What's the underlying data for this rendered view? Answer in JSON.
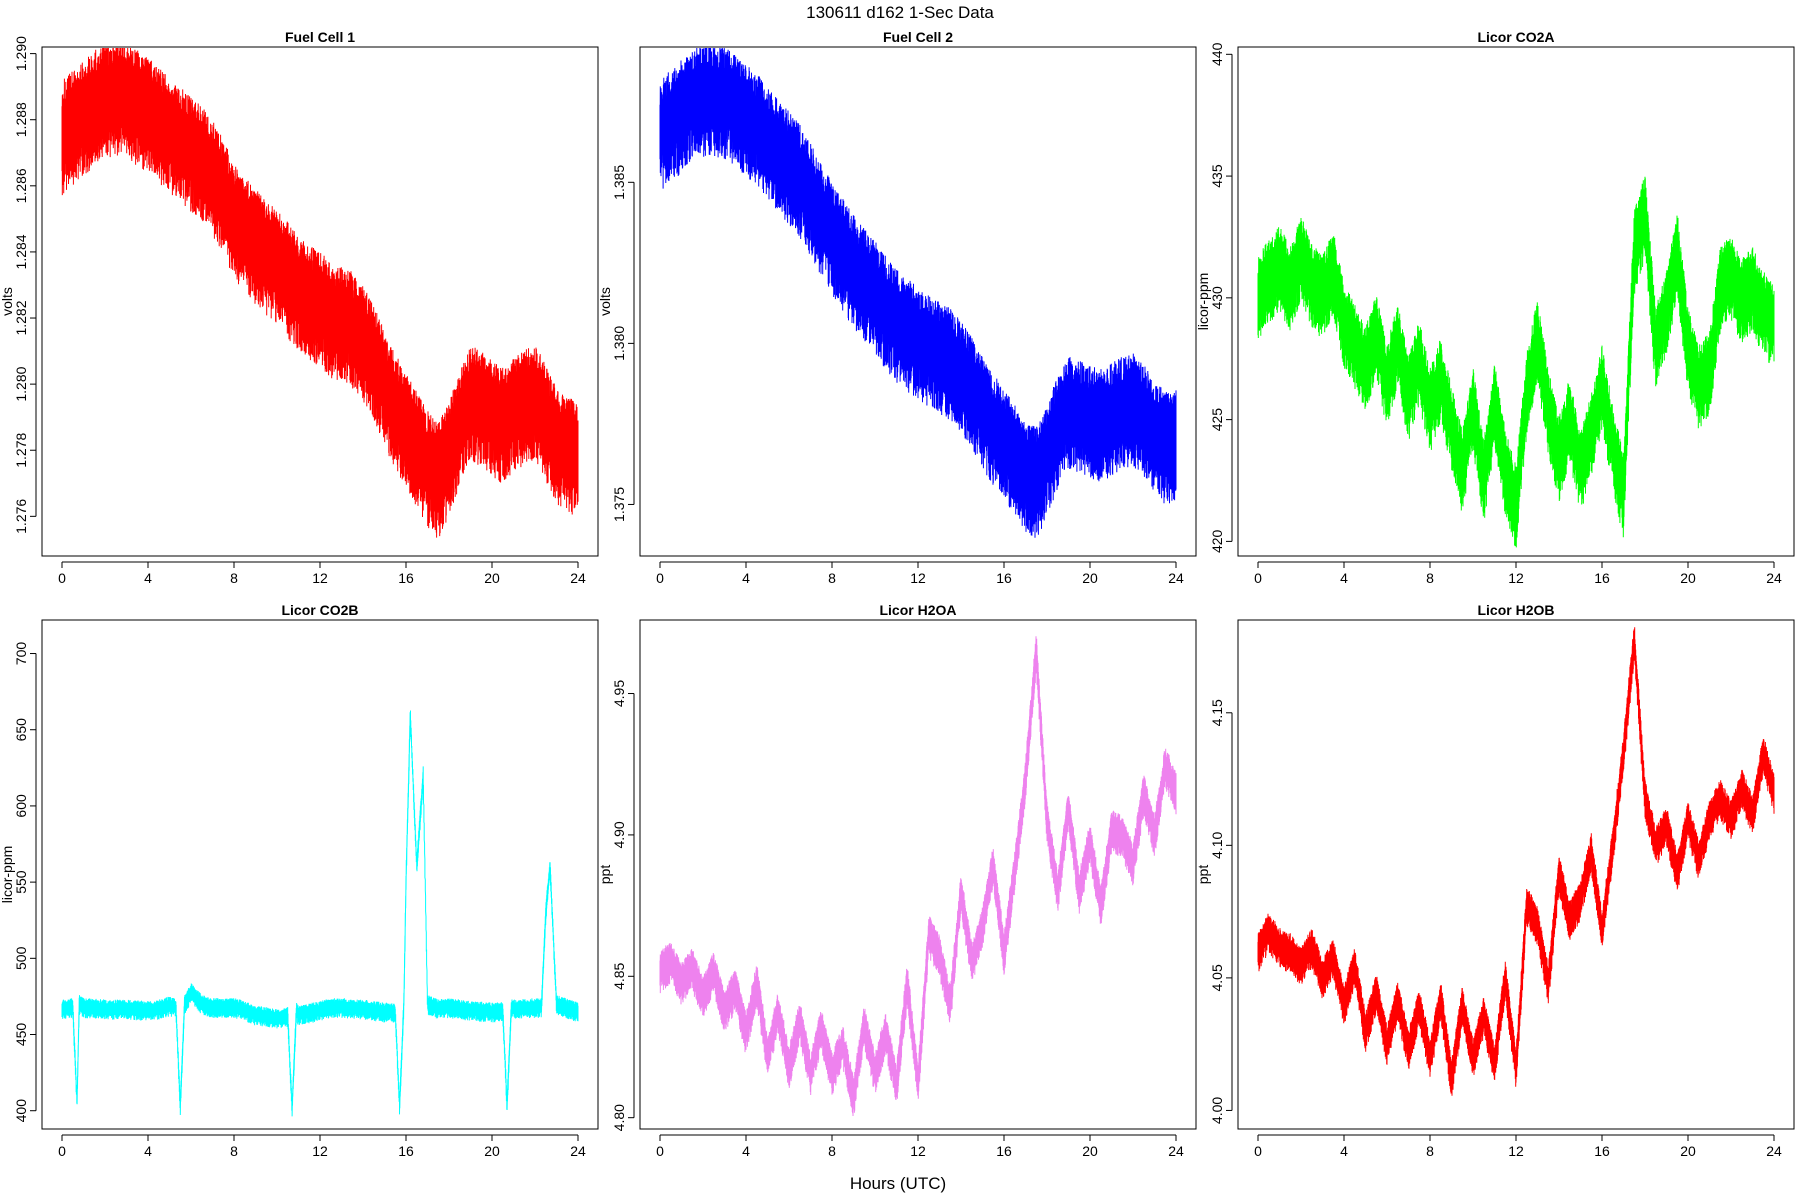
{
  "page": {
    "title": "130611   d162   1-Sec Data",
    "xlabel": "Hours (UTC)"
  },
  "chart_data": [
    {
      "type": "line",
      "title": "Fuel Cell 1",
      "ylabel": "volts",
      "color": "#ff0000",
      "xlim": [
        0,
        24
      ],
      "ylim": [
        1.2748,
        1.2902
      ],
      "xticks": [
        "0",
        "4",
        "8",
        "12",
        "16",
        "20",
        "24"
      ],
      "yticks": [
        "1.276",
        "1.278",
        "1.280",
        "1.282",
        "1.284",
        "1.286",
        "1.288",
        "1.290"
      ],
      "series": [
        {
          "x": [
            0,
            0.5,
            1,
            1.5,
            2,
            2.5,
            3,
            3.5,
            4,
            4.5,
            5,
            5.5,
            6,
            6.5,
            7,
            7.5,
            8,
            8.5,
            9,
            9.5,
            10,
            10.5,
            11,
            11.5,
            12,
            12.5,
            13,
            13.5,
            14,
            14.5,
            15,
            15.5,
            16,
            16.5,
            17,
            17.5,
            18,
            18.5,
            19,
            19.5,
            20,
            20.5,
            21,
            21.5,
            22,
            22.5,
            23,
            23.5,
            24
          ],
          "y": [
            1.2876,
            1.2879,
            1.2882,
            1.2885,
            1.2887,
            1.2888,
            1.2887,
            1.2885,
            1.2883,
            1.288,
            1.2877,
            1.2874,
            1.2871,
            1.2868,
            1.2864,
            1.2858,
            1.2851,
            1.2847,
            1.2843,
            1.284,
            1.2837,
            1.2833,
            1.2829,
            1.2826,
            1.2824,
            1.2821,
            1.282,
            1.2818,
            1.2814,
            1.2808,
            1.28,
            1.2793,
            1.2788,
            1.2782,
            1.2776,
            1.2772,
            1.2779,
            1.2788,
            1.2796,
            1.2794,
            1.2791,
            1.2789,
            1.2792,
            1.2795,
            1.2796,
            1.279,
            1.2783,
            1.278,
            1.2779
          ],
          "band": 0.0016
        }
      ]
    },
    {
      "type": "line",
      "title": "Fuel Cell 2",
      "ylabel": "volts",
      "color": "#0000ff",
      "xlim": [
        0,
        24
      ],
      "ylim": [
        1.3734,
        1.3892
      ],
      "xticks": [
        "0",
        "4",
        "8",
        "12",
        "16",
        "20",
        "24"
      ],
      "yticks": [
        "1.375",
        "1.380",
        "1.385"
      ],
      "series": [
        {
          "x": [
            0,
            0.5,
            1,
            1.5,
            2,
            2.5,
            3,
            3.5,
            4,
            4.5,
            5,
            5.5,
            6,
            6.5,
            7,
            7.5,
            8,
            8.5,
            9,
            9.5,
            10,
            10.5,
            11,
            11.5,
            12,
            12.5,
            13,
            13.5,
            14,
            14.5,
            15,
            15.5,
            16,
            16.5,
            17,
            17.5,
            18,
            18.5,
            19,
            19.5,
            20,
            20.5,
            21,
            21.5,
            22,
            22.5,
            23,
            23.5,
            24
          ],
          "y": [
            1.3866,
            1.3869,
            1.3872,
            1.3875,
            1.3877,
            1.3877,
            1.3876,
            1.3874,
            1.3871,
            1.3868,
            1.3864,
            1.386,
            1.3856,
            1.3852,
            1.3846,
            1.384,
            1.3834,
            1.3829,
            1.3824,
            1.382,
            1.3816,
            1.3811,
            1.3807,
            1.3804,
            1.3802,
            1.3799,
            1.3797,
            1.3795,
            1.3791,
            1.3786,
            1.378,
            1.3775,
            1.377,
            1.3765,
            1.376,
            1.3758,
            1.3765,
            1.3774,
            1.378,
            1.3779,
            1.3777,
            1.3776,
            1.3778,
            1.378,
            1.3781,
            1.3778,
            1.3773,
            1.3769,
            1.377
          ],
          "band": 0.0016
        }
      ]
    },
    {
      "type": "line",
      "title": "Licor CO2A",
      "ylabel": "licor-ppm",
      "color": "#00ff00",
      "xlim": [
        0,
        24
      ],
      "ylim": [
        419.4,
        440.3
      ],
      "xticks": [
        "0",
        "4",
        "8",
        "12",
        "16",
        "20",
        "24"
      ],
      "yticks": [
        "420",
        "425",
        "430",
        "435",
        "440"
      ],
      "series": [
        {
          "x": [
            0,
            0.5,
            1,
            1.5,
            2,
            2.5,
            3,
            3.5,
            4,
            4.5,
            5,
            5.5,
            6,
            6.5,
            7,
            7.5,
            8,
            8.5,
            9,
            9.5,
            10,
            10.5,
            11,
            11.5,
            12,
            12.5,
            13,
            13.5,
            14,
            14.5,
            15,
            15.5,
            16,
            16.5,
            17,
            17.5,
            18,
            18.5,
            19,
            19.5,
            20,
            20.5,
            21,
            21.5,
            22,
            22.5,
            23,
            23.5,
            24
          ],
          "y": [
            430.2,
            430.8,
            431.4,
            430.5,
            431.8,
            430.6,
            430.2,
            431.2,
            429.0,
            428.2,
            427.2,
            428.6,
            426.5,
            428.2,
            426.0,
            427.5,
            425.5,
            426.8,
            424.8,
            423.0,
            425.6,
            422.5,
            425.8,
            423.0,
            421.5,
            426.2,
            428.4,
            425.5,
            423.5,
            425.2,
            423.0,
            424.5,
            426.5,
            424.0,
            422.0,
            432.0,
            433.5,
            428.0,
            429.5,
            432.0,
            428.0,
            426.5,
            427.0,
            430.5,
            431.0,
            430.0,
            430.5,
            429.5,
            429.0
          ],
          "band": 1.6
        }
      ]
    },
    {
      "type": "line",
      "title": "Licor CO2B",
      "ylabel": "licor-ppm",
      "color": "#00ffff",
      "xlim": [
        0,
        24
      ],
      "ylim": [
        388,
        722
      ],
      "xticks": [
        "0",
        "4",
        "8",
        "12",
        "16",
        "20",
        "24"
      ],
      "yticks": [
        "400",
        "450",
        "500",
        "550",
        "600",
        "650",
        "700"
      ],
      "series": [
        {
          "x": [
            0,
            0.5,
            0.7,
            0.8,
            1,
            2,
            3,
            4,
            4.5,
            5,
            5.3,
            5.5,
            5.7,
            6,
            6.5,
            7,
            8,
            8.5,
            9,
            10,
            10.5,
            10.7,
            10.9,
            11,
            12,
            12.5,
            13,
            14,
            15,
            15.5,
            15.7,
            15.9,
            16,
            16.2,
            16.5,
            16.8,
            17,
            17.5,
            18,
            19,
            20,
            20.5,
            20.7,
            20.9,
            21,
            22,
            22.3,
            22.5,
            22.7,
            23,
            24
          ],
          "y": [
            467,
            468,
            405,
            470,
            468,
            467,
            467,
            466,
            467,
            469,
            468,
            403,
            470,
            478,
            470,
            468,
            468,
            466,
            463,
            461,
            462,
            401,
            465,
            463,
            466,
            468,
            468,
            467,
            465,
            465,
            403,
            470,
            550,
            660,
            560,
            620,
            470,
            467,
            468,
            466,
            465,
            466,
            403,
            468,
            467,
            468,
            468,
            530,
            560,
            470,
            465
          ],
          "band": 6
        }
      ]
    },
    {
      "type": "line",
      "title": "Licor H2OA",
      "ylabel": "ppt",
      "color": "#ee82ee",
      "xlim": [
        0,
        24
      ],
      "ylim": [
        4.796,
        4.976
      ],
      "xticks": [
        "0",
        "4",
        "8",
        "12",
        "16",
        "20",
        "24"
      ],
      "yticks": [
        "4.80",
        "4.85",
        "4.90",
        "4.95"
      ],
      "series": [
        {
          "x": [
            0,
            0.5,
            1,
            1.5,
            2,
            2.5,
            3,
            3.5,
            4,
            4.5,
            5,
            5.5,
            6,
            6.5,
            7,
            7.5,
            8,
            8.5,
            9,
            9.5,
            10,
            10.5,
            11,
            11.5,
            12,
            12.5,
            13,
            13.5,
            14,
            14.5,
            15,
            15.5,
            16,
            16.5,
            17,
            17.5,
            18,
            18.5,
            19,
            19.5,
            20,
            20.5,
            21,
            21.5,
            22,
            22.5,
            23,
            23.5,
            24
          ],
          "y": [
            4.852,
            4.856,
            4.848,
            4.853,
            4.843,
            4.852,
            4.838,
            4.846,
            4.83,
            4.848,
            4.822,
            4.838,
            4.818,
            4.835,
            4.816,
            4.832,
            4.816,
            4.826,
            4.808,
            4.833,
            4.816,
            4.83,
            4.812,
            4.848,
            4.812,
            4.865,
            4.858,
            4.84,
            4.88,
            4.855,
            4.868,
            4.89,
            4.858,
            4.888,
            4.92,
            4.965,
            4.905,
            4.88,
            4.91,
            4.88,
            4.898,
            4.875,
            4.902,
            4.9,
            4.89,
            4.915,
            4.9,
            4.925,
            4.915
          ],
          "band": 0.007
        }
      ]
    },
    {
      "type": "line",
      "title": "Licor H2OB",
      "ylabel": "ppt",
      "color": "#ff0000",
      "xlim": [
        0,
        24
      ],
      "ylim": [
        3.993,
        4.185
      ],
      "xticks": [
        "0",
        "4",
        "8",
        "12",
        "16",
        "20",
        "24"
      ],
      "yticks": [
        "4.00",
        "4.05",
        "4.10",
        "4.15"
      ],
      "series": [
        {
          "x": [
            0,
            0.5,
            1,
            1.5,
            2,
            2.5,
            3,
            3.5,
            4,
            4.5,
            5,
            5.5,
            6,
            6.5,
            7,
            7.5,
            8,
            8.5,
            9,
            9.5,
            10,
            10.5,
            11,
            11.5,
            12,
            12.5,
            13,
            13.5,
            14,
            14.5,
            15,
            15.5,
            16,
            16.5,
            17,
            17.5,
            18,
            18.5,
            19,
            19.5,
            20,
            20.5,
            21,
            21.5,
            22,
            22.5,
            23,
            23.5,
            24
          ],
          "y": [
            4.06,
            4.068,
            4.062,
            4.06,
            4.055,
            4.062,
            4.05,
            4.058,
            4.04,
            4.055,
            4.03,
            4.045,
            4.025,
            4.042,
            4.023,
            4.04,
            4.02,
            4.042,
            4.012,
            4.04,
            4.02,
            4.036,
            4.018,
            4.05,
            4.016,
            4.078,
            4.07,
            4.048,
            4.09,
            4.072,
            4.08,
            4.098,
            4.068,
            4.1,
            4.135,
            4.178,
            4.118,
            4.1,
            4.108,
            4.09,
            4.11,
            4.095,
            4.11,
            4.118,
            4.11,
            4.122,
            4.112,
            4.135,
            4.12
          ],
          "band": 0.007
        }
      ]
    }
  ]
}
